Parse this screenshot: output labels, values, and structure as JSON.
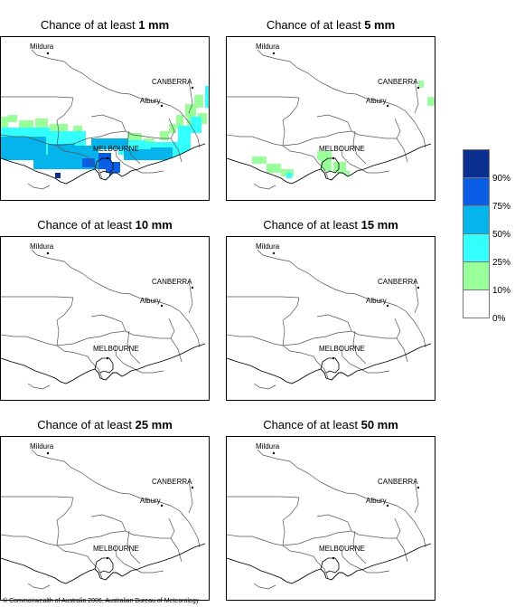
{
  "panels": [
    {
      "title_prefix": "Chance of at least ",
      "threshold": "1 mm",
      "rain": "heavy"
    },
    {
      "title_prefix": "Chance of at least ",
      "threshold": "5 mm",
      "rain": "light"
    },
    {
      "title_prefix": "Chance of at least ",
      "threshold": "10 mm",
      "rain": "none"
    },
    {
      "title_prefix": "Chance of at least ",
      "threshold": "15 mm",
      "rain": "none"
    },
    {
      "title_prefix": "Chance of at least ",
      "threshold": "25 mm",
      "rain": "none"
    },
    {
      "title_prefix": "Chance of at least ",
      "threshold": "50 mm",
      "rain": "none"
    }
  ],
  "cities": {
    "mildura": "Mildura",
    "canberra": "CANBERRA",
    "albury": "Albury",
    "melbourne": "MELBOURNE"
  },
  "legend": {
    "swatches": [
      "#0a2f8f",
      "#0a5ee6",
      "#05b4ea",
      "#33ffff",
      "#99ff99",
      "#ffffff"
    ],
    "labels": [
      "90%",
      "75%",
      "50%",
      "25%",
      "10%",
      "0%"
    ]
  },
  "copyright": "© Commonwealth of Australia 2006, Australian Bureau of Meteorology"
}
